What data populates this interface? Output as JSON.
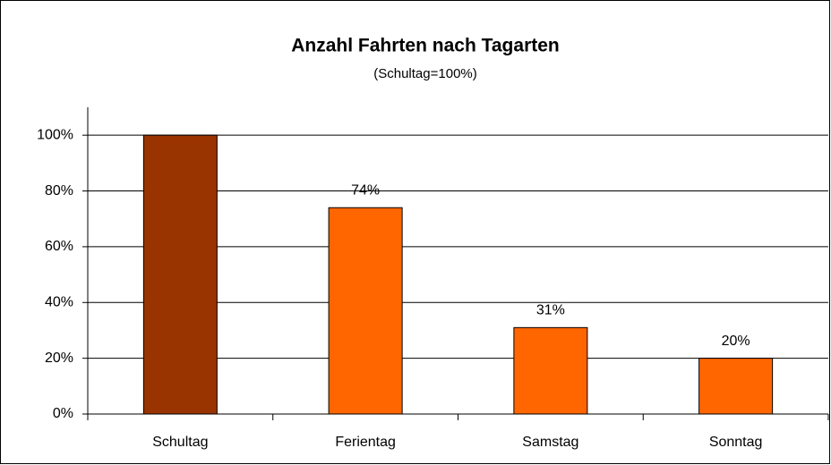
{
  "chart_data": {
    "type": "bar",
    "title": "Anzahl Fahrten nach Tagarten",
    "subtitle": "(Schultag=100%)",
    "categories": [
      "Schultag",
      "Ferientag",
      "Samstag",
      "Sonntag"
    ],
    "values": [
      100,
      74,
      31,
      20
    ],
    "value_labels": [
      null,
      "74%",
      "31%",
      "20%"
    ],
    "colors": [
      "#993300",
      "#ff6600",
      "#ff6600",
      "#ff6600"
    ],
    "ylim": [
      0,
      110
    ],
    "yticks": [
      {
        "value": 0,
        "label": "0%"
      },
      {
        "value": 20,
        "label": "20%"
      },
      {
        "value": 40,
        "label": "40%"
      },
      {
        "value": 60,
        "label": "60%"
      },
      {
        "value": 80,
        "label": "80%"
      },
      {
        "value": 100,
        "label": "100%"
      }
    ],
    "grid": true
  }
}
